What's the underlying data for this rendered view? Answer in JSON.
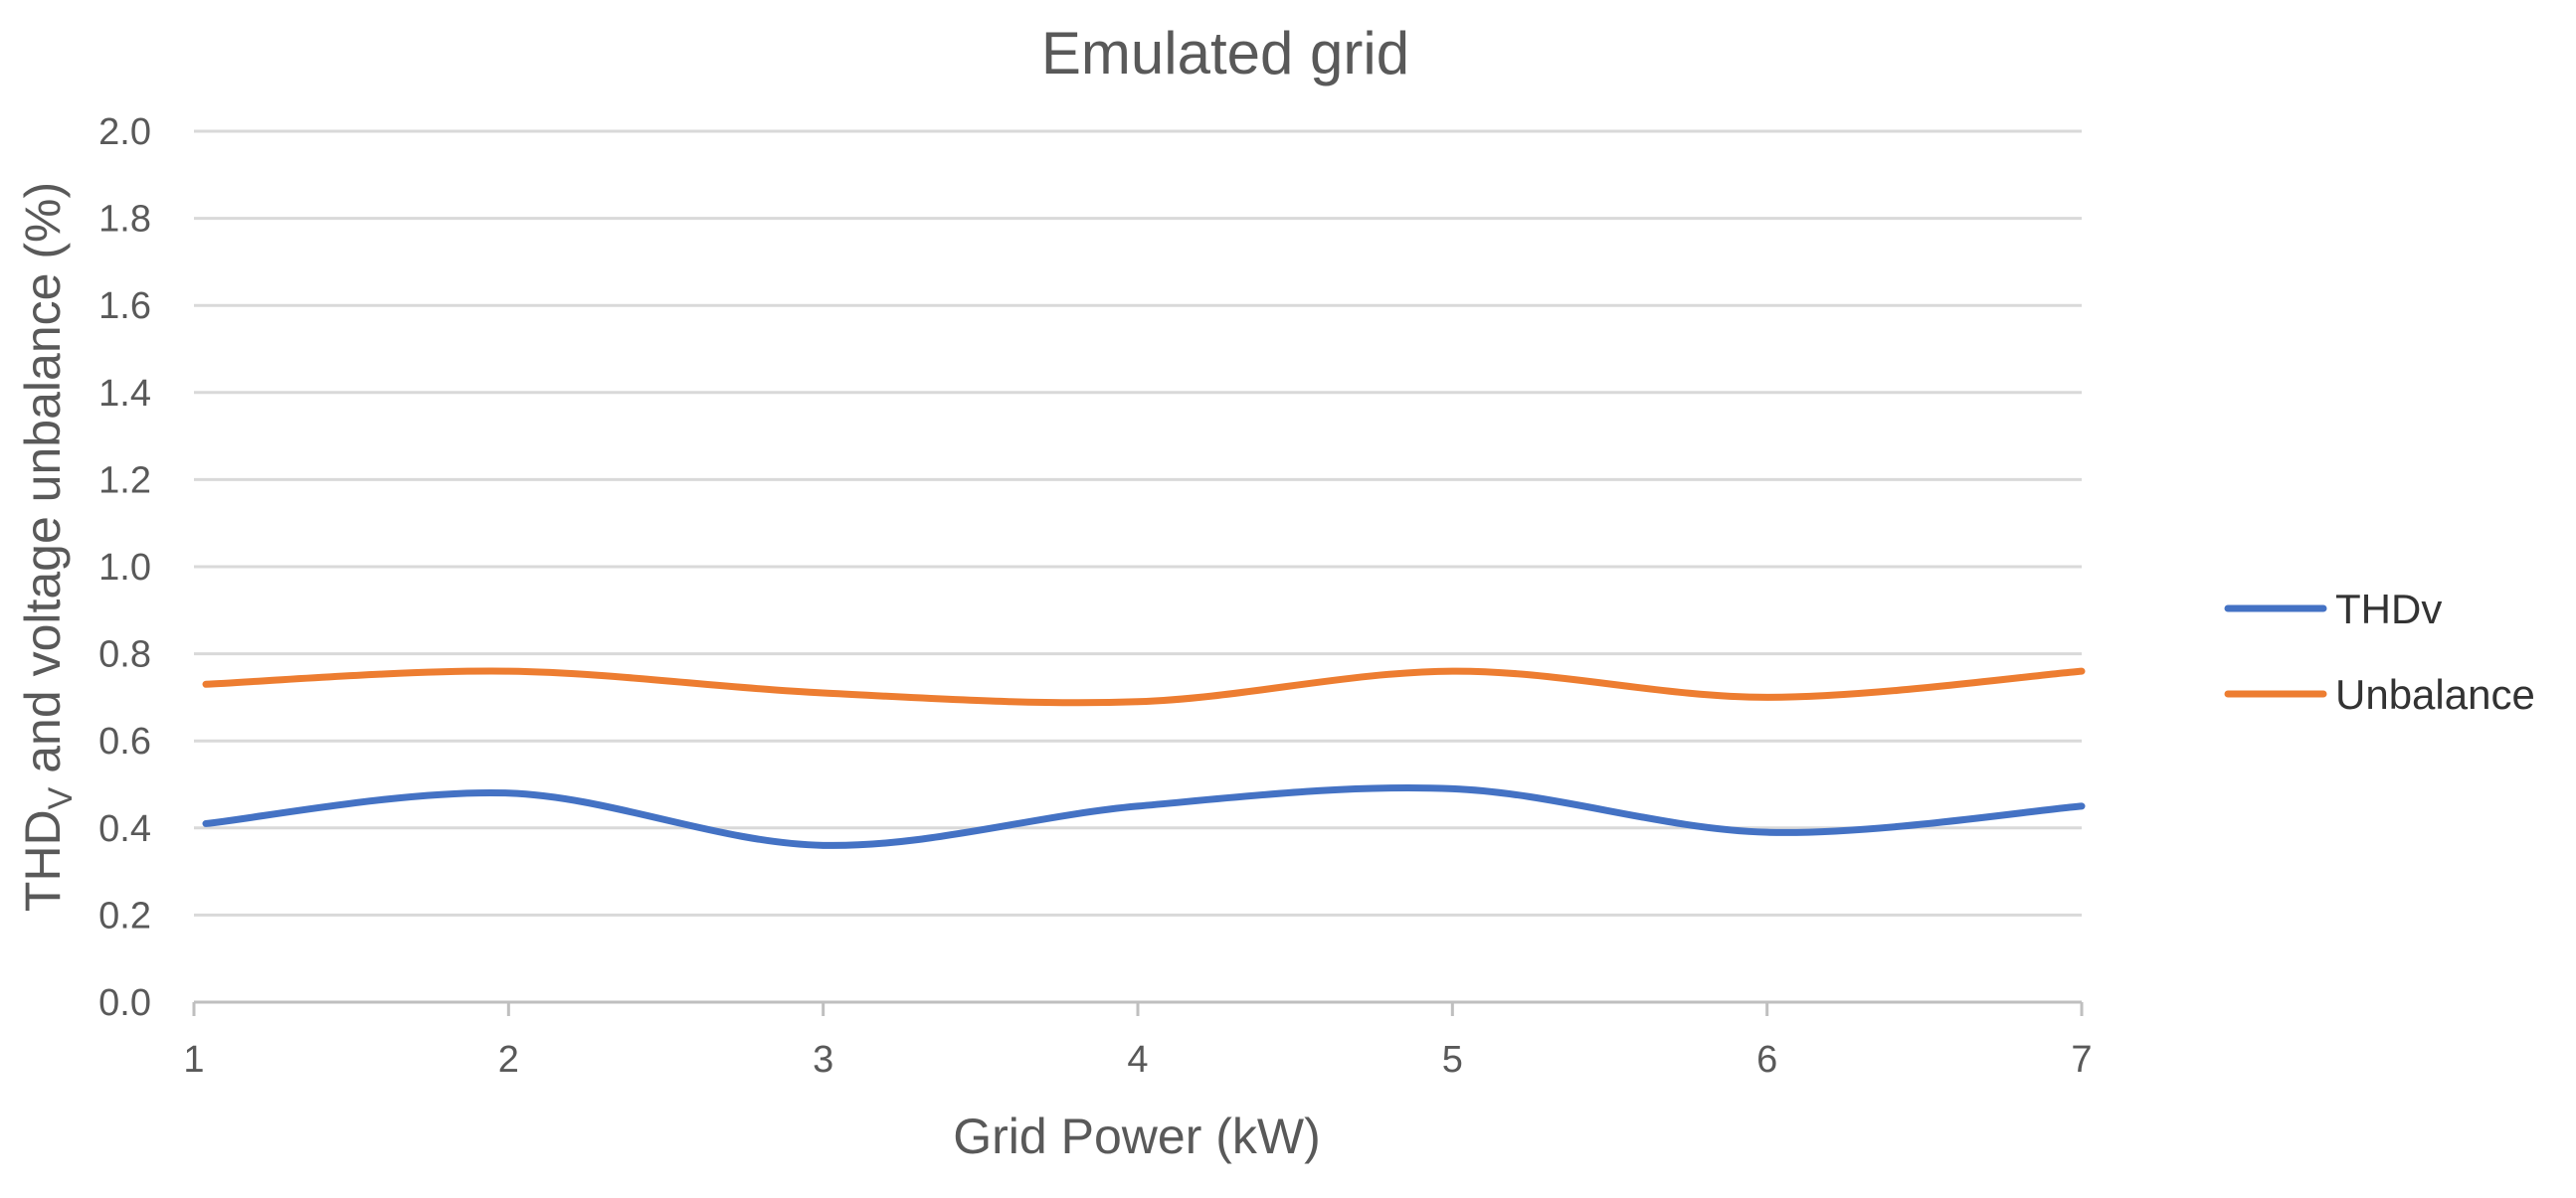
{
  "chart_data": {
    "type": "line",
    "title": "Emulated grid",
    "xlabel": "Grid Power (kW)",
    "ylabel": {
      "prefix": "THD",
      "subscript": "V",
      "suffix": " and voltage unbalance  (%)"
    },
    "x": [
      1,
      2,
      3,
      4,
      5,
      6,
      7
    ],
    "x_tick_labels": [
      "1",
      "2",
      "3",
      "4",
      "5",
      "6",
      "7"
    ],
    "xlim": [
      1,
      7
    ],
    "ylim": [
      0,
      2
    ],
    "y_ticks": [
      0,
      0.2,
      0.4,
      0.6,
      0.8,
      1.0,
      1.2,
      1.4,
      1.6,
      1.8,
      2.0
    ],
    "y_tick_labels": [
      "0.0",
      "0.2",
      "0.4",
      "0.6",
      "0.8",
      "1.0",
      "1.2",
      "1.4",
      "1.6",
      "1.8",
      "2.0"
    ],
    "grid": true,
    "legend_position": "right",
    "smooth": true,
    "series": [
      {
        "name": "THDv",
        "color": "#4472C4",
        "values": [
          0.41,
          0.48,
          0.36,
          0.45,
          0.49,
          0.39,
          0.45
        ]
      },
      {
        "name": "Unbalance",
        "color": "#ED7D31",
        "values": [
          0.73,
          0.76,
          0.71,
          0.69,
          0.76,
          0.7,
          0.76
        ]
      }
    ]
  }
}
